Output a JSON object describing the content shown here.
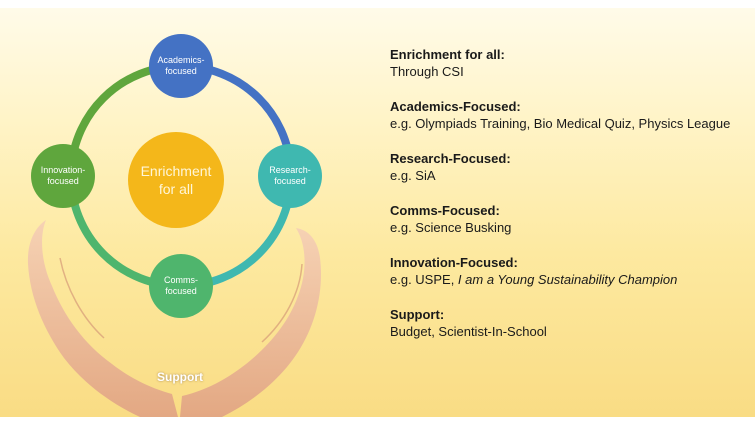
{
  "diagram": {
    "center_label": "Enrichment\nfor all",
    "nodes": {
      "top": "Academics-\nfocused",
      "right": "Research-\nfocused",
      "bottom": "Comms-\nfocused",
      "left": "Innovation-\nfocused"
    },
    "support_label": "Support",
    "colors": {
      "center": "#f4b71a",
      "top": "#4472c4",
      "right": "#3fb8b0",
      "bottom": "#4fb56d",
      "left": "#5fa63d",
      "ring_top_right": "#4472c4",
      "ring_right_bottom": "#3fb8b0",
      "ring_bottom_left": "#4fb56d",
      "ring_left_top": "#5fa63d"
    }
  },
  "sections": [
    {
      "title": "Enrichment for all:",
      "text": "Through CSI"
    },
    {
      "title": "Academics-Focused:",
      "text": "e.g. Olympiads Training, Bio Medical Quiz, Physics League"
    },
    {
      "title": "Research-Focused:",
      "text": "e.g. SiA"
    },
    {
      "title": "Comms-Focused:",
      "text": "e.g.  Science Busking"
    },
    {
      "title": "Innovation-Focused:",
      "text_plain": "e.g. USPE, ",
      "text_italic": "I am a Young Sustainability Champion"
    },
    {
      "title": "Support:",
      "text": "Budget, Scientist-In-School"
    }
  ]
}
